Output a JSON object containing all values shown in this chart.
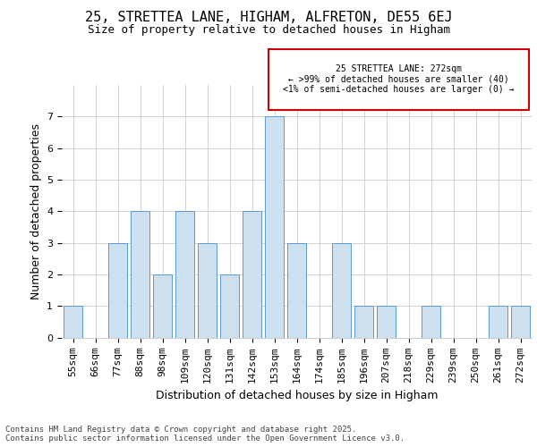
{
  "title1": "25, STRETTEA LANE, HIGHAM, ALFRETON, DE55 6EJ",
  "title2": "Size of property relative to detached houses in Higham",
  "xlabel": "Distribution of detached houses by size in Higham",
  "ylabel": "Number of detached properties",
  "categories": [
    "55sqm",
    "66sqm",
    "77sqm",
    "88sqm",
    "98sqm",
    "109sqm",
    "120sqm",
    "131sqm",
    "142sqm",
    "153sqm",
    "164sqm",
    "174sqm",
    "185sqm",
    "196sqm",
    "207sqm",
    "218sqm",
    "229sqm",
    "239sqm",
    "250sqm",
    "261sqm",
    "272sqm"
  ],
  "values": [
    1,
    0,
    3,
    4,
    2,
    4,
    3,
    2,
    4,
    7,
    3,
    0,
    3,
    1,
    1,
    0,
    1,
    0,
    0,
    1,
    1
  ],
  "bar_color": "#cce0f0",
  "bar_edge_color": "#5b9bd5",
  "annotation_text": "25 STRETTEA LANE: 272sqm\n← >99% of detached houses are smaller (40)\n<1% of semi-detached houses are larger (0) →",
  "annotation_box_edge": "#cc0000",
  "ylim": [
    0,
    8
  ],
  "yticks": [
    0,
    1,
    2,
    3,
    4,
    5,
    6,
    7
  ],
  "footnote": "Contains HM Land Registry data © Crown copyright and database right 2025.\nContains public sector information licensed under the Open Government Licence v3.0.",
  "background_color": "#ffffff",
  "grid_color": "#cccccc",
  "title1_fontsize": 11,
  "title2_fontsize": 9,
  "ylabel_fontsize": 9,
  "xlabel_fontsize": 9,
  "tick_fontsize": 8,
  "footnote_fontsize": 6.5
}
